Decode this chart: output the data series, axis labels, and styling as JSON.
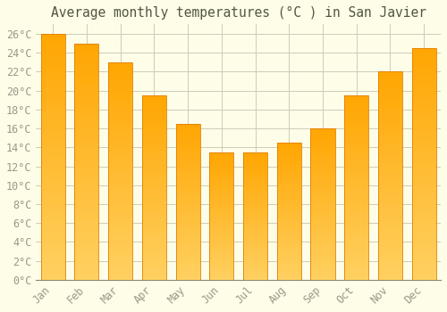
{
  "title": "Average monthly temperatures (°C ) in San Javier",
  "months": [
    "Jan",
    "Feb",
    "Mar",
    "Apr",
    "May",
    "Jun",
    "Jul",
    "Aug",
    "Sep",
    "Oct",
    "Nov",
    "Dec"
  ],
  "values": [
    26,
    25,
    23,
    19.5,
    16.5,
    13.5,
    13.5,
    14.5,
    16,
    19.5,
    22,
    24.5
  ],
  "bar_color_top": "#FFA500",
  "bar_color_bottom": "#FFD060",
  "bar_edge_color": "#E08000",
  "background_color": "#FDFDE8",
  "grid_color": "#CCCCBB",
  "ylim": [
    0,
    27
  ],
  "ytick_values": [
    0,
    2,
    4,
    6,
    8,
    10,
    12,
    14,
    16,
    18,
    20,
    22,
    24,
    26
  ],
  "title_fontsize": 10.5,
  "tick_fontsize": 8.5,
  "tick_color": "#999988",
  "title_color": "#555544",
  "font_family": "monospace"
}
